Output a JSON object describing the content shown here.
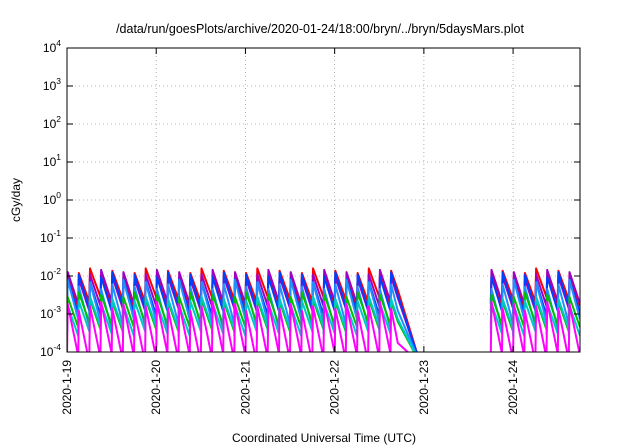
{
  "chart_data": {
    "type": "line",
    "title": "/data/run/goesPlots/archive/2020-01-24/18:00/bryn/../bryn/5daysMars.plot",
    "xlabel": "Coordinated Universal Time (UTC)",
    "ylabel": "cGy/day",
    "x_type": "date",
    "xlim": [
      "2020-01-19T00:00",
      "2020-01-24T18:00"
    ],
    "ylim": [
      0.0001,
      10000
    ],
    "y_scale": "log",
    "grid": true,
    "legend": "none",
    "x_ticks": [
      "2020-1-19",
      "2020-1-20",
      "2020-1-21",
      "2020-1-22",
      "2020-1-23",
      "2020-1-24"
    ],
    "y_ticks": [
      {
        "base": "10",
        "exp": "4"
      },
      {
        "base": "10",
        "exp": "3"
      },
      {
        "base": "10",
        "exp": "2"
      },
      {
        "base": "10",
        "exp": "1"
      },
      {
        "base": "10",
        "exp": "0"
      },
      {
        "base": "10",
        "exp": "-1"
      },
      {
        "base": "10",
        "exp": "-2"
      },
      {
        "base": "10",
        "exp": "-3"
      },
      {
        "base": "10",
        "exp": "-4"
      }
    ],
    "series_shape": {
      "cycle_hours": 3,
      "segments": [
        {
          "start": "2020-01-19T00:00",
          "end": "2020-01-20T18:00"
        },
        {
          "start": "2020-01-20T18:00",
          "end": "2020-01-22T17:00",
          "decay_to": "2020-01-22T23:00"
        },
        {
          "start": "2020-01-23T18:00",
          "end": "2020-01-24T18:00"
        }
      ]
    },
    "series": [
      {
        "color": "#ff0000",
        "peak": 0.012,
        "trough": 0.0021
      },
      {
        "color": "#a000c0",
        "peak": 0.011,
        "trough": 0.0016
      },
      {
        "color": "#0040ff",
        "peak": 0.0095,
        "trough": 0.0012
      },
      {
        "color": "#2090ff",
        "peak": 0.006,
        "trough": 0.00055
      },
      {
        "color": "#00c000",
        "peak": 0.0028,
        "trough": 0.00045
      },
      {
        "color": "#00c8c8",
        "peak": 0.0022,
        "trough": 0.00035
      },
      {
        "color": "#ff00ff",
        "peak": 0.0016,
        "trough": 7e-05
      }
    ]
  }
}
